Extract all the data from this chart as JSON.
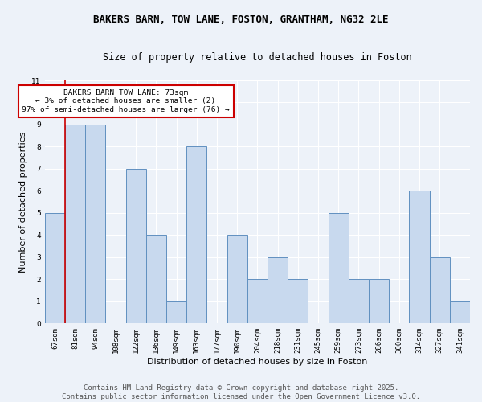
{
  "title1": "BAKERS BARN, TOW LANE, FOSTON, GRANTHAM, NG32 2LE",
  "title2": "Size of property relative to detached houses in Foston",
  "xlabel": "Distribution of detached houses by size in Foston",
  "ylabel": "Number of detached properties",
  "categories": [
    "67sqm",
    "81sqm",
    "94sqm",
    "108sqm",
    "122sqm",
    "136sqm",
    "149sqm",
    "163sqm",
    "177sqm",
    "190sqm",
    "204sqm",
    "218sqm",
    "231sqm",
    "245sqm",
    "259sqm",
    "273sqm",
    "286sqm",
    "300sqm",
    "314sqm",
    "327sqm",
    "341sqm"
  ],
  "values": [
    5,
    9,
    9,
    0,
    7,
    4,
    1,
    8,
    0,
    4,
    2,
    3,
    2,
    0,
    5,
    2,
    2,
    0,
    6,
    3,
    1
  ],
  "bar_color": "#c8d9ee",
  "bar_edge_color": "#6090c0",
  "annotation_box_text": "BAKERS BARN TOW LANE: 73sqm\n← 3% of detached houses are smaller (2)\n97% of semi-detached houses are larger (76) →",
  "annotation_box_color": "#ffffff",
  "annotation_box_edge_color": "#cc0000",
  "red_line_index": 1,
  "ylim": [
    0,
    11
  ],
  "yticks": [
    0,
    1,
    2,
    3,
    4,
    5,
    6,
    7,
    8,
    9,
    10,
    11
  ],
  "footer": "Contains HM Land Registry data © Crown copyright and database right 2025.\nContains public sector information licensed under the Open Government Licence v3.0.",
  "background_color": "#edf2f9",
  "grid_color": "#ffffff",
  "title_fontsize": 9,
  "subtitle_fontsize": 8.5,
  "axis_label_fontsize": 8,
  "tick_fontsize": 6.5,
  "footer_fontsize": 6.5,
  "ann_fontsize": 6.8
}
